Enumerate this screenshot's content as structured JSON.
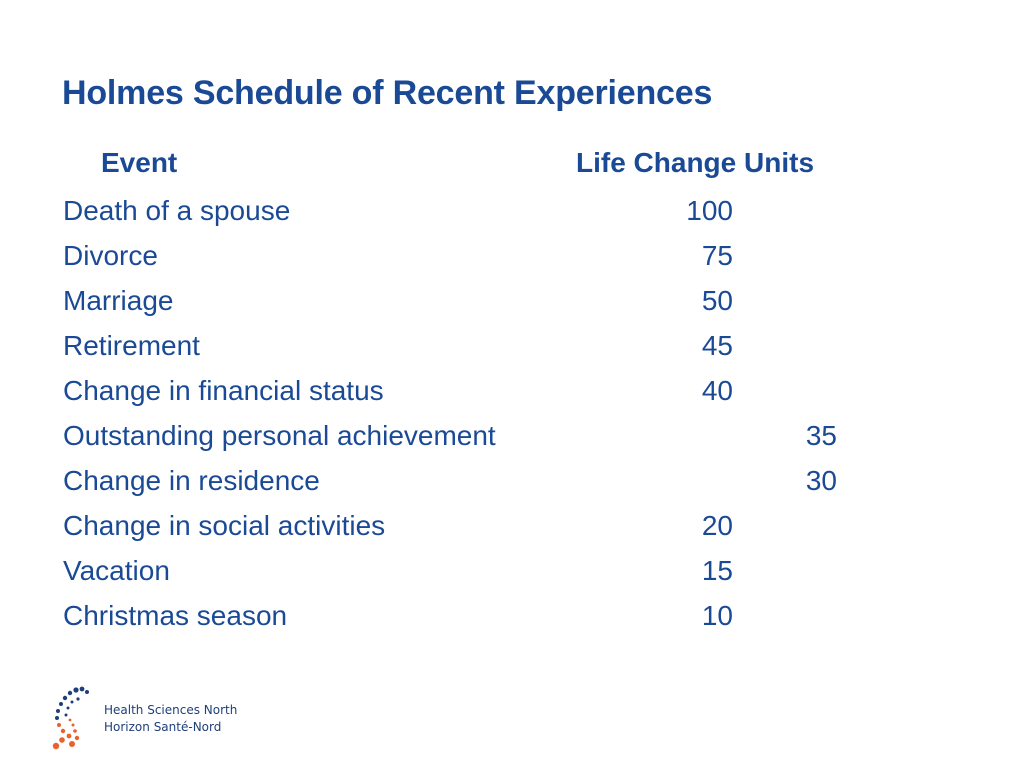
{
  "colors": {
    "title": "#1a4a95",
    "text": "#1a4a95",
    "logo_blue": "#1f3f7a",
    "logo_orange": "#e8622c"
  },
  "slide": {
    "title": "Holmes Schedule of Recent Experiences",
    "header": {
      "event": "Event",
      "units": "Life Change Units"
    },
    "rows": [
      {
        "event": "Death of a spouse",
        "value": "100",
        "column": "a"
      },
      {
        "event": "Divorce",
        "value": "75",
        "column": "a"
      },
      {
        "event": "Marriage",
        "value": "50",
        "column": "a"
      },
      {
        "event": "Retirement",
        "value": "45",
        "column": "a"
      },
      {
        "event": "Change in financial status",
        "value": "40",
        "column": "a"
      },
      {
        "event": "Outstanding personal achievement",
        "value": "35",
        "column": "b"
      },
      {
        "event": "Change in residence",
        "value": "30",
        "column": "b"
      },
      {
        "event": "Change in social activities",
        "value": "20",
        "column": "a"
      },
      {
        "event": "Vacation",
        "value": "15",
        "column": "a"
      },
      {
        "event": "Christmas season",
        "value": "10",
        "column": "a"
      }
    ]
  },
  "logo": {
    "line1": "Health Sciences North",
    "line2": "Horizon Santé-Nord",
    "icon": "dotted-spiral-logo-icon"
  }
}
